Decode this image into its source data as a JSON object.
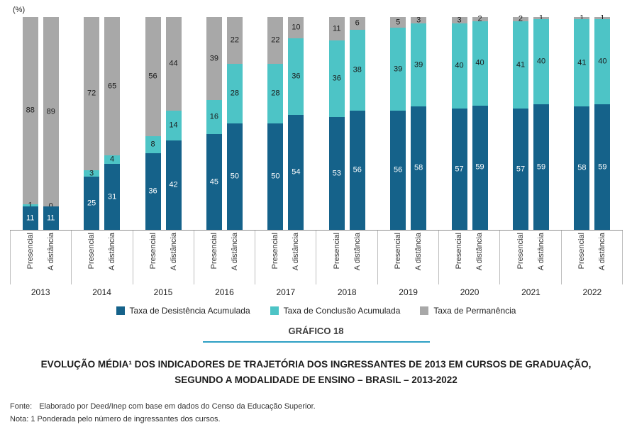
{
  "chart_data": {
    "type": "bar",
    "stacked": true,
    "unit_label": "(%)",
    "title": "GRÁFICO 18",
    "ylim": [
      0,
      100
    ],
    "legend_position": "bottom",
    "categories": [
      "2013",
      "2014",
      "2015",
      "2016",
      "2017",
      "2018",
      "2019",
      "2020",
      "2021",
      "2022"
    ],
    "modalities": [
      "Presencial",
      "A distância"
    ],
    "series": [
      {
        "name": "Taxa de Desistência Acumulada",
        "color": "#15628a",
        "label_color": "#ffffff",
        "values": [
          [
            11,
            25,
            36,
            45,
            50,
            53,
            56,
            57,
            57,
            58
          ],
          [
            11,
            31,
            42,
            50,
            54,
            56,
            58,
            59,
            59,
            59
          ]
        ]
      },
      {
        "name": "Taxa de Conclusão Acumulada",
        "color": "#4dc4c6",
        "label_color": "#1a1a1a",
        "values": [
          [
            1,
            3,
            8,
            16,
            28,
            36,
            39,
            40,
            41,
            41
          ],
          [
            0,
            4,
            14,
            28,
            36,
            38,
            39,
            40,
            40,
            40
          ]
        ]
      },
      {
        "name": "Taxa de Permanência",
        "color": "#a8a8a8",
        "label_color": "#1a1a1a",
        "values": [
          [
            88,
            72,
            56,
            39,
            22,
            11,
            5,
            3,
            2,
            1
          ],
          [
            89,
            65,
            44,
            22,
            10,
            6,
            3,
            2,
            1,
            1
          ]
        ]
      }
    ]
  },
  "title": "GRÁFICO 18",
  "title_rule_color": "#2d9fc4",
  "caption": {
    "line1": "EVOLUÇÃO MÉDIA¹ DOS INDICADORES DE TRAJETÓRIA DOS INGRESSANTES DE 2013 EM CURSOS DE GRADUAÇÃO,",
    "line2": "SEGUNDO A MODALIDADE DE ENSINO – BRASIL – 2013-2022"
  },
  "fonte_label": "Fonte:",
  "fonte_text": "Elaborado por Deed/Inep com base em dados do Censo da Educação Superior.",
  "nota": "Nota: 1 Ponderada pelo número de ingressantes dos cursos."
}
